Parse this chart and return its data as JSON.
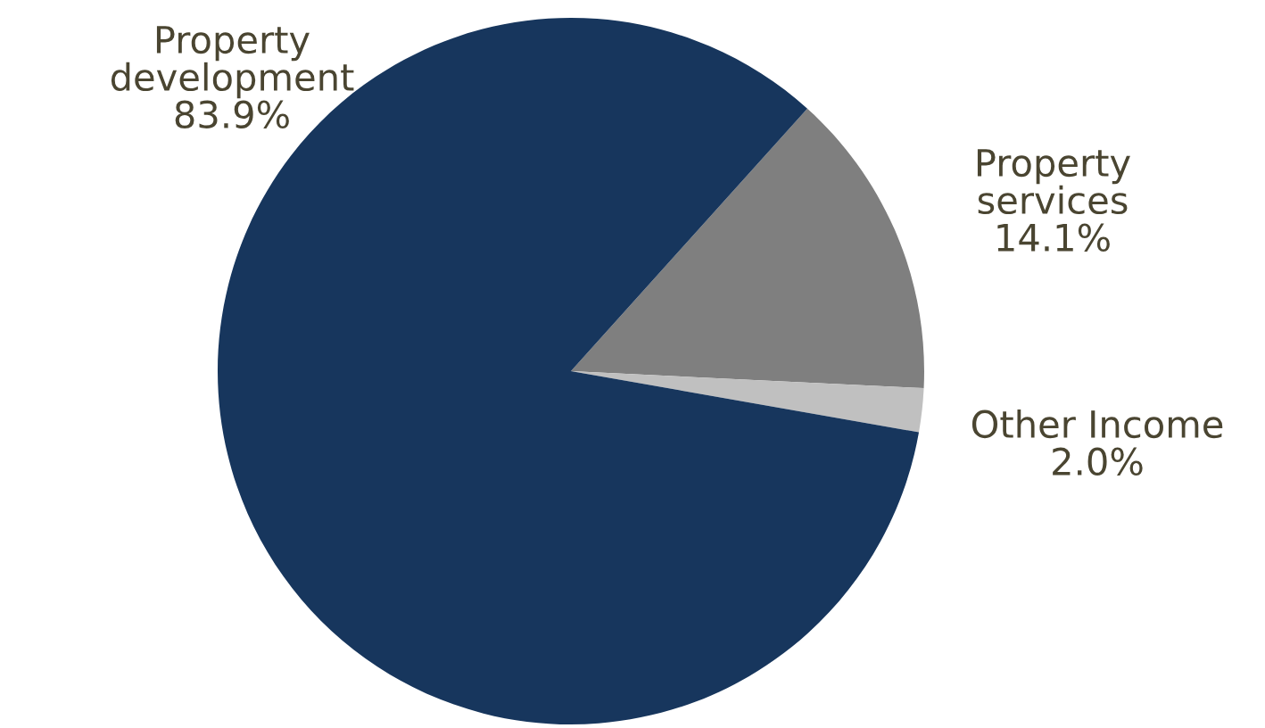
{
  "chart_data": {
    "type": "pie",
    "categories": [
      "Property services",
      "Other Income",
      "Property development"
    ],
    "values": [
      14.1,
      2.0,
      83.9
    ],
    "colors": [
      "#7f7f7f",
      "#c0c0c0",
      "#17365d"
    ],
    "value_labels": [
      "14.1%",
      "2.0%",
      "83.9%"
    ]
  }
}
